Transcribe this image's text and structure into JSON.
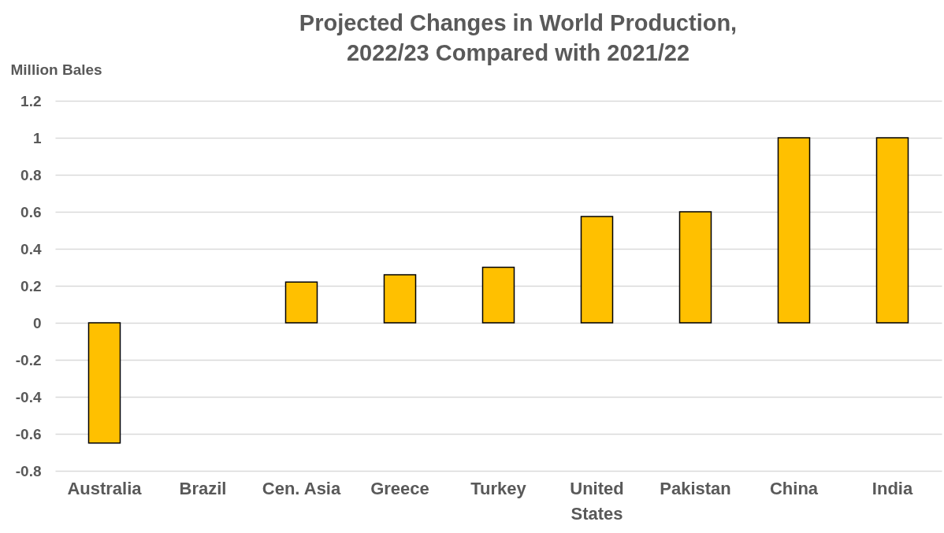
{
  "chart_data": {
    "type": "bar",
    "title": "Projected Changes in World Production, 2022/23 Compared with 2021/22",
    "ylabel": "Million Bales",
    "categories": [
      "Australia",
      "Brazil",
      "Cen. Asia",
      "Greece",
      "Turkey",
      "United States",
      "Pakistan",
      "China",
      "India"
    ],
    "values": [
      -0.65,
      0,
      0.22,
      0.26,
      0.3,
      0.575,
      0.6,
      1,
      1
    ],
    "color": "#ffc000",
    "ylim": [
      -0.8,
      1.2
    ],
    "yticks": [
      -0.8,
      -0.6,
      -0.4,
      -0.2,
      0,
      0.2,
      0.4,
      0.6,
      0.8,
      1,
      1.2
    ],
    "grid": "y"
  }
}
